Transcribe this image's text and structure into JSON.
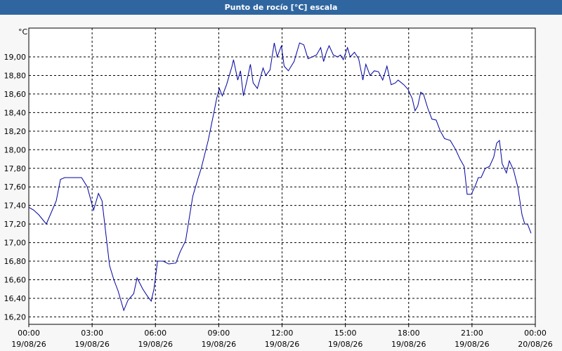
{
  "chart_data": {
    "type": "line",
    "title": "Punto de rocío [°C] escala",
    "y_unit": "°C",
    "x": [
      0,
      0.23,
      0.47,
      0.83,
      1.3,
      1.5,
      1.7,
      2.5,
      2.77,
      3.07,
      3.3,
      3.47,
      3.7,
      3.83,
      4.03,
      4.23,
      4.5,
      4.7,
      4.97,
      5.13,
      5.4,
      5.63,
      5.8,
      5.93,
      6.1,
      6.37,
      6.63,
      6.97,
      7.17,
      7.43,
      7.77,
      8.03,
      8.17,
      8.5,
      8.77,
      8.9,
      9.03,
      9.17,
      9.37,
      9.63,
      9.7,
      9.9,
      10.03,
      10.17,
      10.37,
      10.5,
      10.63,
      10.83,
      11.1,
      11.23,
      11.43,
      11.63,
      11.77,
      11.97,
      12.1,
      12.3,
      12.57,
      12.83,
      13.03,
      13.23,
      13.43,
      13.63,
      13.83,
      13.97,
      14.1,
      14.23,
      14.43,
      14.63,
      14.77,
      14.9,
      15.1,
      15.23,
      15.43,
      15.63,
      15.83,
      15.97,
      16.17,
      16.37,
      16.57,
      16.77,
      16.97,
      17.17,
      17.37,
      17.5,
      17.77,
      17.97,
      18.17,
      18.3,
      18.43,
      18.57,
      18.7,
      18.9,
      19.1,
      19.3,
      19.5,
      19.7,
      19.97,
      20.23,
      20.43,
      20.63,
      20.77,
      20.97,
      21.17,
      21.3,
      21.43,
      21.63,
      21.83,
      22.03,
      22.17,
      22.3,
      22.43,
      22.63,
      22.77,
      22.97,
      23.17,
      23.37,
      23.5,
      23.63,
      23.8
    ],
    "series": [
      {
        "name": "Punto de rocío",
        "color": "#0000a0",
        "values": [
          17.38,
          17.35,
          17.3,
          17.2,
          17.45,
          17.68,
          17.7,
          17.7,
          17.6,
          17.35,
          17.53,
          17.45,
          17.0,
          16.75,
          16.6,
          16.48,
          16.27,
          16.38,
          16.45,
          16.62,
          16.5,
          16.42,
          16.37,
          16.5,
          16.8,
          16.8,
          16.77,
          16.78,
          16.9,
          17.02,
          17.5,
          17.7,
          17.8,
          18.1,
          18.4,
          18.55,
          18.66,
          18.58,
          18.7,
          18.9,
          18.97,
          18.75,
          18.85,
          18.58,
          18.78,
          18.92,
          18.72,
          18.66,
          18.88,
          18.8,
          18.86,
          19.15,
          19.0,
          19.12,
          18.9,
          18.85,
          18.95,
          19.15,
          19.13,
          18.98,
          19.0,
          19.02,
          19.1,
          18.95,
          19.05,
          19.12,
          19.02,
          19.0,
          19.02,
          18.97,
          19.1,
          19.0,
          19.05,
          18.98,
          18.75,
          18.92,
          18.8,
          18.85,
          18.84,
          18.75,
          18.9,
          18.7,
          18.72,
          18.75,
          18.7,
          18.65,
          18.55,
          18.42,
          18.47,
          18.62,
          18.6,
          18.45,
          18.33,
          18.32,
          18.2,
          18.12,
          18.1,
          18.0,
          17.9,
          17.82,
          17.52,
          17.52,
          17.62,
          17.7,
          17.7,
          17.8,
          17.82,
          17.92,
          18.07,
          18.1,
          17.85,
          17.75,
          17.88,
          17.78,
          17.6,
          17.3,
          17.2,
          17.2,
          17.1
        ]
      }
    ],
    "xlim": [
      0,
      24
    ],
    "xticks": [
      {
        "value": 0,
        "label": "00:00\n19/08/26"
      },
      {
        "value": 3,
        "label": "03:00\n19/08/26"
      },
      {
        "value": 6,
        "label": "06:00\n19/08/26"
      },
      {
        "value": 9,
        "label": "09:00\n19/08/26"
      },
      {
        "value": 12,
        "label": "12:00\n19/08/26"
      },
      {
        "value": 15,
        "label": "15:00\n19/08/26"
      },
      {
        "value": 18,
        "label": "18:00\n19/08/26"
      },
      {
        "value": 21,
        "label": "21:00\n19/08/26"
      },
      {
        "value": 24,
        "label": "00:00\n20/08/26"
      }
    ],
    "ylim": [
      16.12,
      19.31
    ],
    "yticks": [
      {
        "value": 16.2,
        "label": "16,20"
      },
      {
        "value": 16.4,
        "label": "16,40"
      },
      {
        "value": 16.6,
        "label": "16,60"
      },
      {
        "value": 16.8,
        "label": "16,80"
      },
      {
        "value": 17.0,
        "label": "17,00"
      },
      {
        "value": 17.2,
        "label": "17,20"
      },
      {
        "value": 17.4,
        "label": "17,40"
      },
      {
        "value": 17.6,
        "label": "17,60"
      },
      {
        "value": 17.8,
        "label": "17,80"
      },
      {
        "value": 18.0,
        "label": "18,00"
      },
      {
        "value": 18.2,
        "label": "18,20"
      },
      {
        "value": 18.4,
        "label": "18,40"
      },
      {
        "value": 18.6,
        "label": "18,60"
      },
      {
        "value": 18.8,
        "label": "18,80"
      },
      {
        "value": 19.0,
        "label": "19,00"
      }
    ],
    "grid": true
  }
}
